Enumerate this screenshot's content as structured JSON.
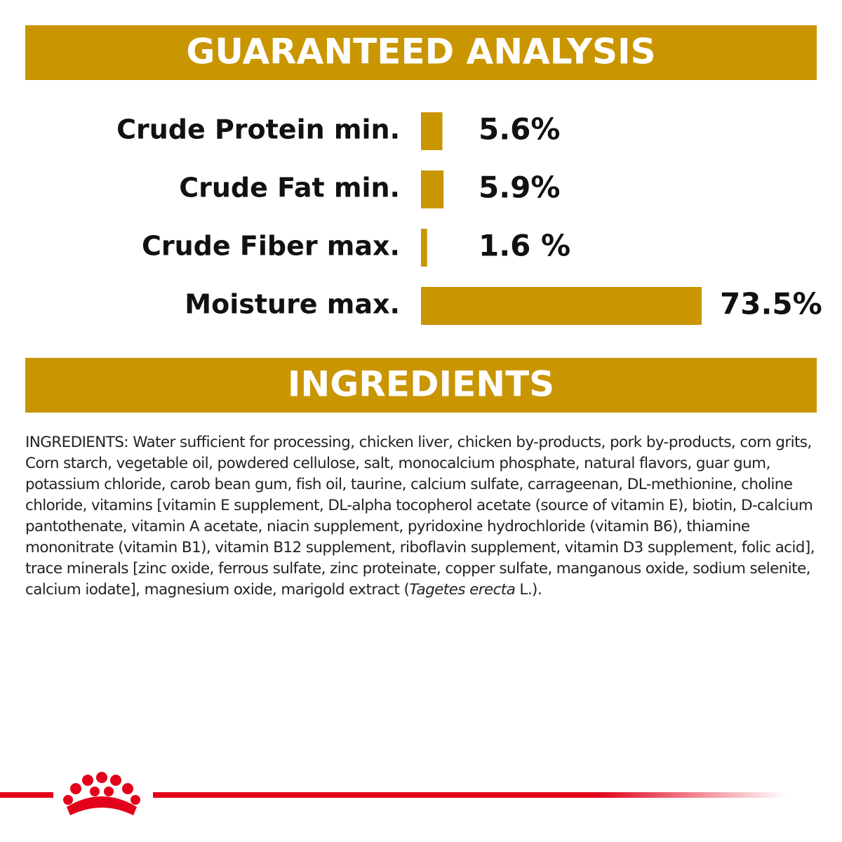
{
  "chart_data": {
    "type": "bar",
    "title": "GUARANTEED ANALYSIS",
    "categories": [
      "Crude Protein min.",
      "Crude Fat min.",
      "Crude Fiber max.",
      "Moisture max."
    ],
    "values": [
      5.6,
      5.9,
      1.6,
      73.5
    ],
    "value_labels": [
      "5.6%",
      "5.9%",
      "1.6 %",
      "73.5%"
    ],
    "color": "#c99500"
  },
  "ingredients": {
    "heading": "INGREDIENTS",
    "body": [
      "INGREDIENTS: Water sufficient for processing, chicken liver, chicken by-products, pork by-products, corn grits, Corn starch, vegetable oil, powdered cellulose, salt, monocalcium phosphate, natural flavors, guar gum, potassium chloride, carob bean gum, fish oil, taurine, calcium sulfate, carrageenan, DL-methionine, choline chloride, vitamins [vitamin E supplement, DL-alpha tocopherol acetate (source of vitamin E), biotin, D-calcium pantothenate, vitamin A acetate, niacin supplement, pyridoxine hydrochloride (vitamin B6), thiamine mononitrate (vitamin B1), vitamin B12 supplement, riboflavin supplement, vitamin D3 supplement, folic acid], trace minerals [zinc oxide, ferrous sulfate, zinc proteinate, copper sulfate, manganous oxide, sodium selenite, calcium iodate], magnesium oxide, marigold extract (",
      "Tagetes erecta",
      " L.)."
    ]
  }
}
